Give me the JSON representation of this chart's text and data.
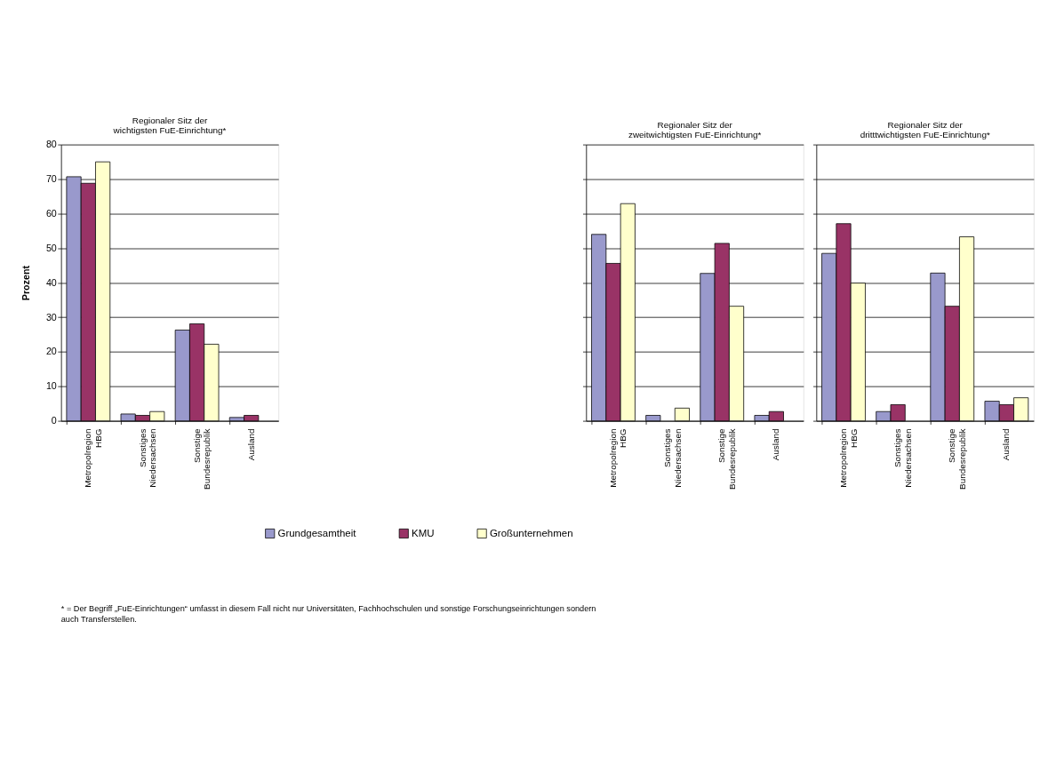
{
  "chart_data": [
    {
      "type": "bar",
      "title": "Regionaler Sitz der\nwichtigsten FuE-Einrichtung*",
      "ylabel": "Prozent",
      "categories": [
        "Metropolregion HBG",
        "Sonstiges Niedersachsen",
        "Sonstige Bundesrepublik",
        "Ausland"
      ],
      "series": [
        {
          "name": "Grundgesamtheit",
          "color": "#9999cc",
          "values": [
            70.7,
            2.0,
            26.3,
            1.0
          ]
        },
        {
          "name": "KMU",
          "color": "#993366",
          "values": [
            68.8,
            1.6,
            28.1,
            1.6
          ]
        },
        {
          "name": "Großunternehmen",
          "color": "#ffffcc",
          "values": [
            75.0,
            2.7,
            22.2,
            null
          ]
        }
      ],
      "ylim": [
        0,
        80
      ],
      "yticks": [
        0,
        10,
        20,
        30,
        40,
        50,
        60,
        70,
        80
      ],
      "grid": "y",
      "legend": "bottom",
      "annotations": [
        "* =  Der Begriff „FuE-Einrichtungen“ umfasst in diesem Fall nicht nur Universitäten, Fachhochschulen und sonstige Forschungseinrichtungen sondern\nauch Transferstellen."
      ]
    },
    {
      "type": "bar",
      "title": "Regionaler Sitz der\nzweitwichtigsten FuE-Einrichtung*",
      "categories": [
        "Metropolregion HBG",
        "Sonstiges Niedersachsen",
        "Sonstige Bundesrepublik",
        "Ausland"
      ],
      "series": [
        {
          "name": "Grundgesamtheit",
          "color": "#9999cc",
          "values": [
            54.0,
            1.6,
            42.7,
            1.6
          ]
        },
        {
          "name": "KMU",
          "color": "#993366",
          "values": [
            45.6,
            null,
            51.4,
            2.7
          ]
        },
        {
          "name": "Großunternehmen",
          "color": "#ffffcc",
          "values": [
            62.9,
            3.7,
            33.2,
            null
          ]
        }
      ],
      "ylim": [
        0,
        80
      ],
      "yticks": [
        0,
        10,
        20,
        30,
        40,
        50,
        60,
        70,
        80
      ],
      "grid": "y",
      "tick_labels": "x"
    },
    {
      "type": "bar",
      "title": "Regionaler Sitz der\ndritttwichtigsten FuE-Einrichtung*",
      "categories": [
        "Metropolregion HBG",
        "Sonstiges Niedersachsen",
        "Sonstige Bundesrepublik",
        "Ausland"
      ],
      "series": [
        {
          "name": "Grundgesamtheit",
          "color": "#9999cc",
          "values": [
            48.5,
            2.7,
            42.8,
            5.7
          ]
        },
        {
          "name": "KMU",
          "color": "#993366",
          "values": [
            57.1,
            4.7,
            33.2,
            4.7
          ]
        },
        {
          "name": "Großunternehmen",
          "color": "#ffffcc",
          "values": [
            39.9,
            null,
            53.3,
            6.7
          ]
        }
      ],
      "ylim": [
        0,
        80
      ],
      "yticks": [
        0,
        10,
        20,
        30,
        40,
        50,
        60,
        70,
        80
      ],
      "grid": "y",
      "tick_labels": "x"
    }
  ]
}
